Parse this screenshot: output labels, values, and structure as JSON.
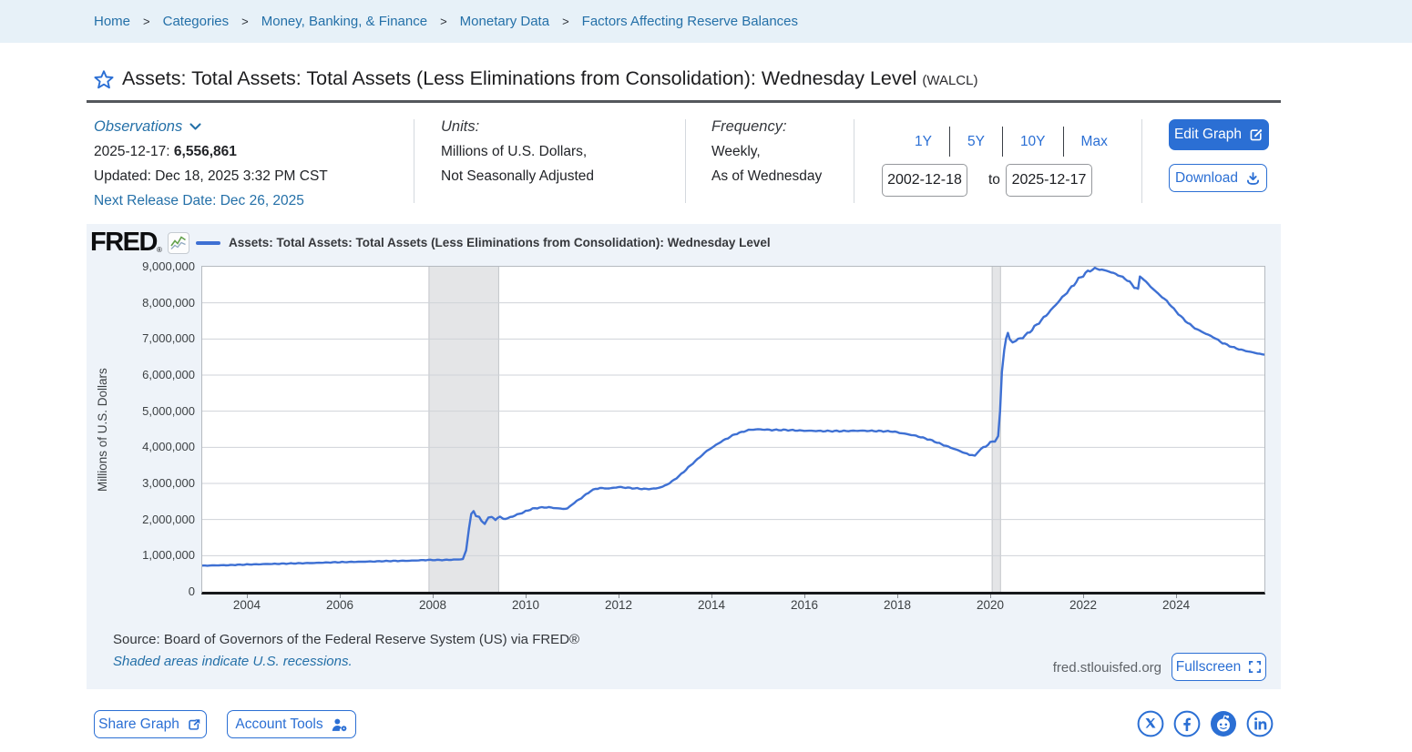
{
  "breadcrumb": {
    "separator": ">",
    "items": [
      "Home",
      "Categories",
      "Money, Banking, & Finance",
      "Monetary Data",
      "Factors Affecting Reserve Balances"
    ]
  },
  "header": {
    "title": "Assets: Total Assets: Total Assets (Less Eliminations from Consolidation): Wednesday Level",
    "ticker": "(WALCL)"
  },
  "meta": {
    "observations": {
      "label": "Observations",
      "latest_date": "2025-12-17:",
      "latest_value": "6,556,861",
      "updated": "Updated: Dec 18, 2025 3:32 PM CST",
      "next_release": "Next Release Date: Dec 26, 2025"
    },
    "units": {
      "label": "Units:",
      "line1": "Millions of U.S. Dollars,",
      "line2": "Not Seasonally Adjusted"
    },
    "frequency": {
      "label": "Frequency:",
      "line1": "Weekly,",
      "line2": "As of Wednesday"
    },
    "range": {
      "options": [
        "1Y",
        "5Y",
        "10Y",
        "Max"
      ],
      "start_date": "2002-12-18",
      "to_label": "to",
      "end_date": "2025-12-17"
    },
    "actions": {
      "edit_graph": "Edit Graph",
      "download": "Download"
    }
  },
  "chart": {
    "brand": "FRED",
    "registered": "®",
    "legend_label": "Assets: Total Assets: Total Assets (Less Eliminations from Consolidation): Wednesday Level",
    "y_axis_title": "Millions of U.S. Dollars",
    "source": "Source: Board of Governors of the Federal Reserve System (US) via FRED®",
    "recession_note": "Shaded areas indicate U.S. recessions.",
    "watermark": "fred.stlouisfed.org",
    "fullscreen_label": "Fullscreen"
  },
  "footer": {
    "share_graph": "Share Graph",
    "account_tools": "Account Tools",
    "social": [
      "x-twitter",
      "facebook",
      "reddit",
      "linkedin"
    ]
  },
  "colors": {
    "accent_blue": "#2b6fd4",
    "link_blue": "#2470a8",
    "line_blue": "#3e70d3",
    "recession_band": "#e4e5e7",
    "panel_bg": "#eef3f9",
    "breadcrumb_bg": "#e7f1f8"
  },
  "chart_data": {
    "type": "line",
    "title": "Assets: Total Assets: Total Assets (Less Eliminations from Consolidation): Wednesday Level",
    "xlabel": "",
    "ylabel": "Millions of U.S. Dollars",
    "ylim": [
      0,
      9000000
    ],
    "x_range": [
      2003.04,
      2025.9
    ],
    "grid": true,
    "legend_position": "top-left",
    "y_ticks": {
      "values": [
        0,
        1000000,
        2000000,
        3000000,
        4000000,
        5000000,
        6000000,
        7000000,
        8000000,
        9000000
      ],
      "labels": [
        "0",
        "1,000,000",
        "2,000,000",
        "3,000,000",
        "4,000,000",
        "5,000,000",
        "6,000,000",
        "7,000,000",
        "8,000,000",
        "9,000,000"
      ]
    },
    "x_ticks": [
      2004,
      2006,
      2008,
      2010,
      2012,
      2014,
      2016,
      2018,
      2020,
      2022,
      2024
    ],
    "recession_bands": [
      [
        2007.92,
        2009.42
      ],
      [
        2020.04,
        2020.22
      ]
    ],
    "series": [
      {
        "name": "Assets: Total Assets: Total Assets (Less Eliminations from Consolidation): Wednesday Level",
        "units": "Millions of U.S. Dollars",
        "points": [
          [
            2003.0,
            720000
          ],
          [
            2003.3,
            730000
          ],
          [
            2003.6,
            737000
          ],
          [
            2004.0,
            755000
          ],
          [
            2004.5,
            770000
          ],
          [
            2005.0,
            785000
          ],
          [
            2005.5,
            800000
          ],
          [
            2006.0,
            820000
          ],
          [
            2006.5,
            832000
          ],
          [
            2007.0,
            850000
          ],
          [
            2007.5,
            860000
          ],
          [
            2007.9,
            880000
          ],
          [
            2008.2,
            880000
          ],
          [
            2008.5,
            890000
          ],
          [
            2008.65,
            905000
          ],
          [
            2008.72,
            1150000
          ],
          [
            2008.78,
            1750000
          ],
          [
            2008.83,
            2150000
          ],
          [
            2008.88,
            2240000
          ],
          [
            2008.93,
            2100000
          ],
          [
            2009.0,
            2080000
          ],
          [
            2009.05,
            1950000
          ],
          [
            2009.12,
            1880000
          ],
          [
            2009.2,
            2050000
          ],
          [
            2009.27,
            2070000
          ],
          [
            2009.35,
            1990000
          ],
          [
            2009.45,
            2080000
          ],
          [
            2009.52,
            2020000
          ],
          [
            2009.62,
            2035000
          ],
          [
            2009.72,
            2090000
          ],
          [
            2009.82,
            2135000
          ],
          [
            2009.92,
            2185000
          ],
          [
            2010.0,
            2230000
          ],
          [
            2010.15,
            2300000
          ],
          [
            2010.3,
            2330000
          ],
          [
            2010.5,
            2340000
          ],
          [
            2010.65,
            2315000
          ],
          [
            2010.8,
            2295000
          ],
          [
            2010.9,
            2305000
          ],
          [
            2011.0,
            2420000
          ],
          [
            2011.2,
            2600000
          ],
          [
            2011.4,
            2790000
          ],
          [
            2011.5,
            2850000
          ],
          [
            2011.6,
            2870000
          ],
          [
            2011.8,
            2860000
          ],
          [
            2012.0,
            2900000
          ],
          [
            2012.2,
            2880000
          ],
          [
            2012.4,
            2860000
          ],
          [
            2012.6,
            2845000
          ],
          [
            2012.8,
            2860000
          ],
          [
            2012.95,
            2910000
          ],
          [
            2013.1,
            3010000
          ],
          [
            2013.3,
            3200000
          ],
          [
            2013.6,
            3560000
          ],
          [
            2013.9,
            3900000
          ],
          [
            2014.2,
            4150000
          ],
          [
            2014.5,
            4360000
          ],
          [
            2014.8,
            4480000
          ],
          [
            2015.0,
            4500000
          ],
          [
            2015.3,
            4480000
          ],
          [
            2015.6,
            4480000
          ],
          [
            2016.0,
            4460000
          ],
          [
            2016.4,
            4450000
          ],
          [
            2016.8,
            4450000
          ],
          [
            2017.2,
            4460000
          ],
          [
            2017.6,
            4450000
          ],
          [
            2017.9,
            4440000
          ],
          [
            2018.1,
            4390000
          ],
          [
            2018.4,
            4320000
          ],
          [
            2018.7,
            4210000
          ],
          [
            2019.0,
            4060000
          ],
          [
            2019.3,
            3920000
          ],
          [
            2019.55,
            3790000
          ],
          [
            2019.67,
            3760000
          ],
          [
            2019.73,
            3860000
          ],
          [
            2019.8,
            3960000
          ],
          [
            2019.9,
            4020000
          ],
          [
            2020.0,
            4140000
          ],
          [
            2020.1,
            4170000
          ],
          [
            2020.17,
            4310000
          ],
          [
            2020.21,
            5000000
          ],
          [
            2020.25,
            6080000
          ],
          [
            2020.3,
            6700000
          ],
          [
            2020.34,
            7010000
          ],
          [
            2020.38,
            7170000
          ],
          [
            2020.42,
            6980000
          ],
          [
            2020.48,
            6920000
          ],
          [
            2020.55,
            6960000
          ],
          [
            2020.65,
            7010000
          ],
          [
            2020.8,
            7140000
          ],
          [
            2020.95,
            7330000
          ],
          [
            2021.1,
            7520000
          ],
          [
            2021.3,
            7790000
          ],
          [
            2021.5,
            8080000
          ],
          [
            2021.7,
            8360000
          ],
          [
            2021.9,
            8660000
          ],
          [
            2022.1,
            8870000
          ],
          [
            2022.25,
            8950000
          ],
          [
            2022.4,
            8920000
          ],
          [
            2022.55,
            8870000
          ],
          [
            2022.7,
            8800000
          ],
          [
            2022.85,
            8710000
          ],
          [
            2023.0,
            8580000
          ],
          [
            2023.1,
            8430000
          ],
          [
            2023.18,
            8390000
          ],
          [
            2023.22,
            8730000
          ],
          [
            2023.3,
            8650000
          ],
          [
            2023.45,
            8450000
          ],
          [
            2023.6,
            8270000
          ],
          [
            2023.8,
            8050000
          ],
          [
            2024.0,
            7760000
          ],
          [
            2024.2,
            7500000
          ],
          [
            2024.4,
            7300000
          ],
          [
            2024.6,
            7170000
          ],
          [
            2024.8,
            7050000
          ],
          [
            2025.0,
            6890000
          ],
          [
            2025.2,
            6780000
          ],
          [
            2025.4,
            6700000
          ],
          [
            2025.6,
            6640000
          ],
          [
            2025.8,
            6590000
          ],
          [
            2025.96,
            6557000
          ]
        ]
      }
    ]
  }
}
